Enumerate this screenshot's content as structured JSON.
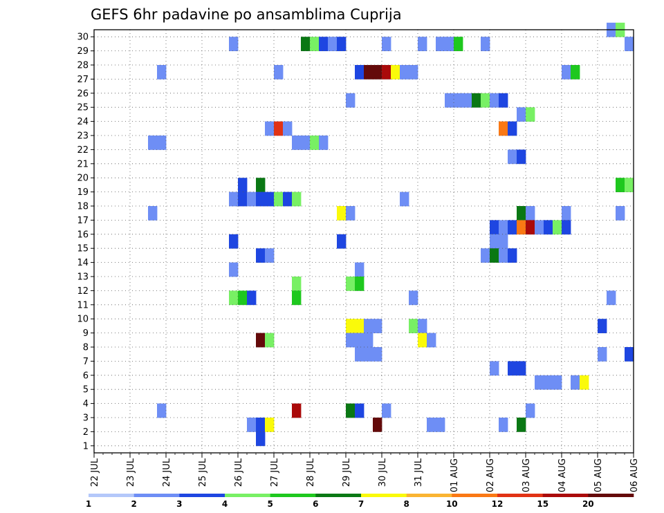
{
  "chart_data": {
    "type": "heatmap",
    "title": "GEFS 6hr padavine po ansamblima Cuprija",
    "xlabel": "",
    "ylabel": "",
    "x_ticks": [
      "22 JUL",
      "23 JUL",
      "24 JUL",
      "25 JUL",
      "26 JUL",
      "27 JUL",
      "28 JUL",
      "29 JUL",
      "30 JUL",
      "31 JUL",
      "01 AUG",
      "02 AUG",
      "03 AUG",
      "04 AUG",
      "05 AUG",
      "06 AUG"
    ],
    "xlim": [
      0,
      60
    ],
    "y_ticks": [
      "1",
      "2",
      "3",
      "4",
      "5",
      "6",
      "7",
      "8",
      "9",
      "10",
      "11",
      "12",
      "13",
      "14",
      "15",
      "16",
      "17",
      "18",
      "19",
      "20",
      "21",
      "22",
      "23",
      "24",
      "25",
      "26",
      "27",
      "28",
      "29",
      "30"
    ],
    "ylim": [
      0,
      30
    ],
    "grid": true,
    "colorbar": {
      "labels": [
        "1",
        "2",
        "3",
        "4",
        "5",
        "6",
        "7",
        "8",
        "10",
        "12",
        "15",
        "20"
      ],
      "colors": [
        "#b4c8fa",
        "#6e8ef5",
        "#1e46e1",
        "#78f064",
        "#1ec81e",
        "#0a7814",
        "#fafa0a",
        "#fab432",
        "#fa7814",
        "#e13214",
        "#aa0a0a",
        "#640a0a"
      ]
    },
    "units_x": "6-hour steps from 22 JUL 00Z",
    "cells": [
      [
        57,
        30,
        1
      ],
      [
        58,
        30,
        3
      ],
      [
        15,
        29,
        1
      ],
      [
        23,
        29,
        5
      ],
      [
        24,
        29,
        3
      ],
      [
        25,
        29,
        2
      ],
      [
        26,
        29,
        1
      ],
      [
        27,
        29,
        2
      ],
      [
        32,
        29,
        1
      ],
      [
        36,
        29,
        1
      ],
      [
        38,
        29,
        1
      ],
      [
        39,
        29,
        1
      ],
      [
        40,
        29,
        4
      ],
      [
        43,
        29,
        1
      ],
      [
        59,
        29,
        1
      ],
      [
        7,
        27,
        1
      ],
      [
        20,
        27,
        1
      ],
      [
        29,
        27,
        2
      ],
      [
        30,
        27,
        11
      ],
      [
        31,
        27,
        11
      ],
      [
        32,
        27,
        10
      ],
      [
        33,
        27,
        6
      ],
      [
        34,
        27,
        1
      ],
      [
        35,
        27,
        1
      ],
      [
        52,
        27,
        1
      ],
      [
        53,
        27,
        4
      ],
      [
        39,
        25,
        1
      ],
      [
        40,
        25,
        1
      ],
      [
        41,
        25,
        1
      ],
      [
        42,
        25,
        5
      ],
      [
        43,
        25,
        3
      ],
      [
        44,
        25,
        1
      ],
      [
        45,
        25,
        2
      ],
      [
        28,
        25,
        1
      ],
      [
        47,
        24,
        1
      ],
      [
        48,
        24,
        3
      ],
      [
        19,
        23,
        1
      ],
      [
        20,
        23,
        9
      ],
      [
        21,
        23,
        1
      ],
      [
        45,
        23,
        8
      ],
      [
        46,
        23,
        2
      ],
      [
        6,
        22,
        1
      ],
      [
        7,
        22,
        1
      ],
      [
        22,
        22,
        1
      ],
      [
        23,
        22,
        1
      ],
      [
        24,
        22,
        3
      ],
      [
        25,
        22,
        1
      ],
      [
        46,
        21,
        1
      ],
      [
        47,
        21,
        2
      ],
      [
        16,
        19,
        2
      ],
      [
        18,
        19,
        5
      ],
      [
        58,
        19,
        4
      ],
      [
        59,
        19,
        3
      ],
      [
        15,
        18,
        1
      ],
      [
        16,
        18,
        2
      ],
      [
        17,
        18,
        1
      ],
      [
        18,
        18,
        2
      ],
      [
        19,
        18,
        2
      ],
      [
        20,
        18,
        3
      ],
      [
        21,
        18,
        2
      ],
      [
        22,
        18,
        3
      ],
      [
        34,
        18,
        1
      ],
      [
        6,
        17,
        1
      ],
      [
        27,
        17,
        6
      ],
      [
        28,
        17,
        1
      ],
      [
        47,
        17,
        5
      ],
      [
        48,
        17,
        1
      ],
      [
        52,
        17,
        1
      ],
      [
        58,
        17,
        1
      ],
      [
        44,
        16,
        2
      ],
      [
        45,
        16,
        1
      ],
      [
        46,
        16,
        2
      ],
      [
        47,
        16,
        8
      ],
      [
        48,
        16,
        10
      ],
      [
        49,
        16,
        1
      ],
      [
        50,
        16,
        2
      ],
      [
        51,
        16,
        3
      ],
      [
        52,
        16,
        2
      ],
      [
        15,
        15,
        2
      ],
      [
        27,
        15,
        2
      ],
      [
        44,
        15,
        1
      ],
      [
        45,
        15,
        1
      ],
      [
        18,
        14,
        2
      ],
      [
        19,
        14,
        1
      ],
      [
        43,
        14,
        1
      ],
      [
        44,
        14,
        5
      ],
      [
        45,
        14,
        1
      ],
      [
        46,
        14,
        2
      ],
      [
        15,
        13,
        1
      ],
      [
        29,
        13,
        1
      ],
      [
        22,
        12,
        3
      ],
      [
        28,
        12,
        3
      ],
      [
        29,
        12,
        4
      ],
      [
        15,
        11,
        3
      ],
      [
        16,
        11,
        4
      ],
      [
        17,
        11,
        2
      ],
      [
        22,
        11,
        4
      ],
      [
        35,
        11,
        1
      ],
      [
        57,
        11,
        1
      ],
      [
        28,
        9,
        6
      ],
      [
        29,
        9,
        6
      ],
      [
        30,
        9,
        1
      ],
      [
        31,
        9,
        1
      ],
      [
        35,
        9,
        3
      ],
      [
        36,
        9,
        1
      ],
      [
        56,
        9,
        2
      ],
      [
        18,
        8,
        11
      ],
      [
        19,
        8,
        3
      ],
      [
        28,
        8,
        1
      ],
      [
        29,
        8,
        1
      ],
      [
        30,
        8,
        1
      ],
      [
        36,
        8,
        6
      ],
      [
        37,
        8,
        1
      ],
      [
        29,
        7,
        1
      ],
      [
        30,
        7,
        1
      ],
      [
        31,
        7,
        1
      ],
      [
        56,
        7,
        1
      ],
      [
        59,
        7,
        2
      ],
      [
        44,
        6,
        1
      ],
      [
        46,
        6,
        2
      ],
      [
        47,
        6,
        2
      ],
      [
        49,
        5,
        1
      ],
      [
        50,
        5,
        1
      ],
      [
        51,
        5,
        1
      ],
      [
        53,
        5,
        1
      ],
      [
        54,
        5,
        6
      ],
      [
        7,
        3,
        1
      ],
      [
        22,
        3,
        10
      ],
      [
        28,
        3,
        5
      ],
      [
        29,
        3,
        2
      ],
      [
        32,
        3,
        1
      ],
      [
        48,
        3,
        1
      ],
      [
        17,
        2,
        1
      ],
      [
        18,
        2,
        2
      ],
      [
        19,
        2,
        6
      ],
      [
        31,
        2,
        11
      ],
      [
        37,
        2,
        1
      ],
      [
        38,
        2,
        1
      ],
      [
        45,
        2,
        1
      ],
      [
        47,
        2,
        5
      ],
      [
        18,
        1,
        2
      ]
    ]
  }
}
